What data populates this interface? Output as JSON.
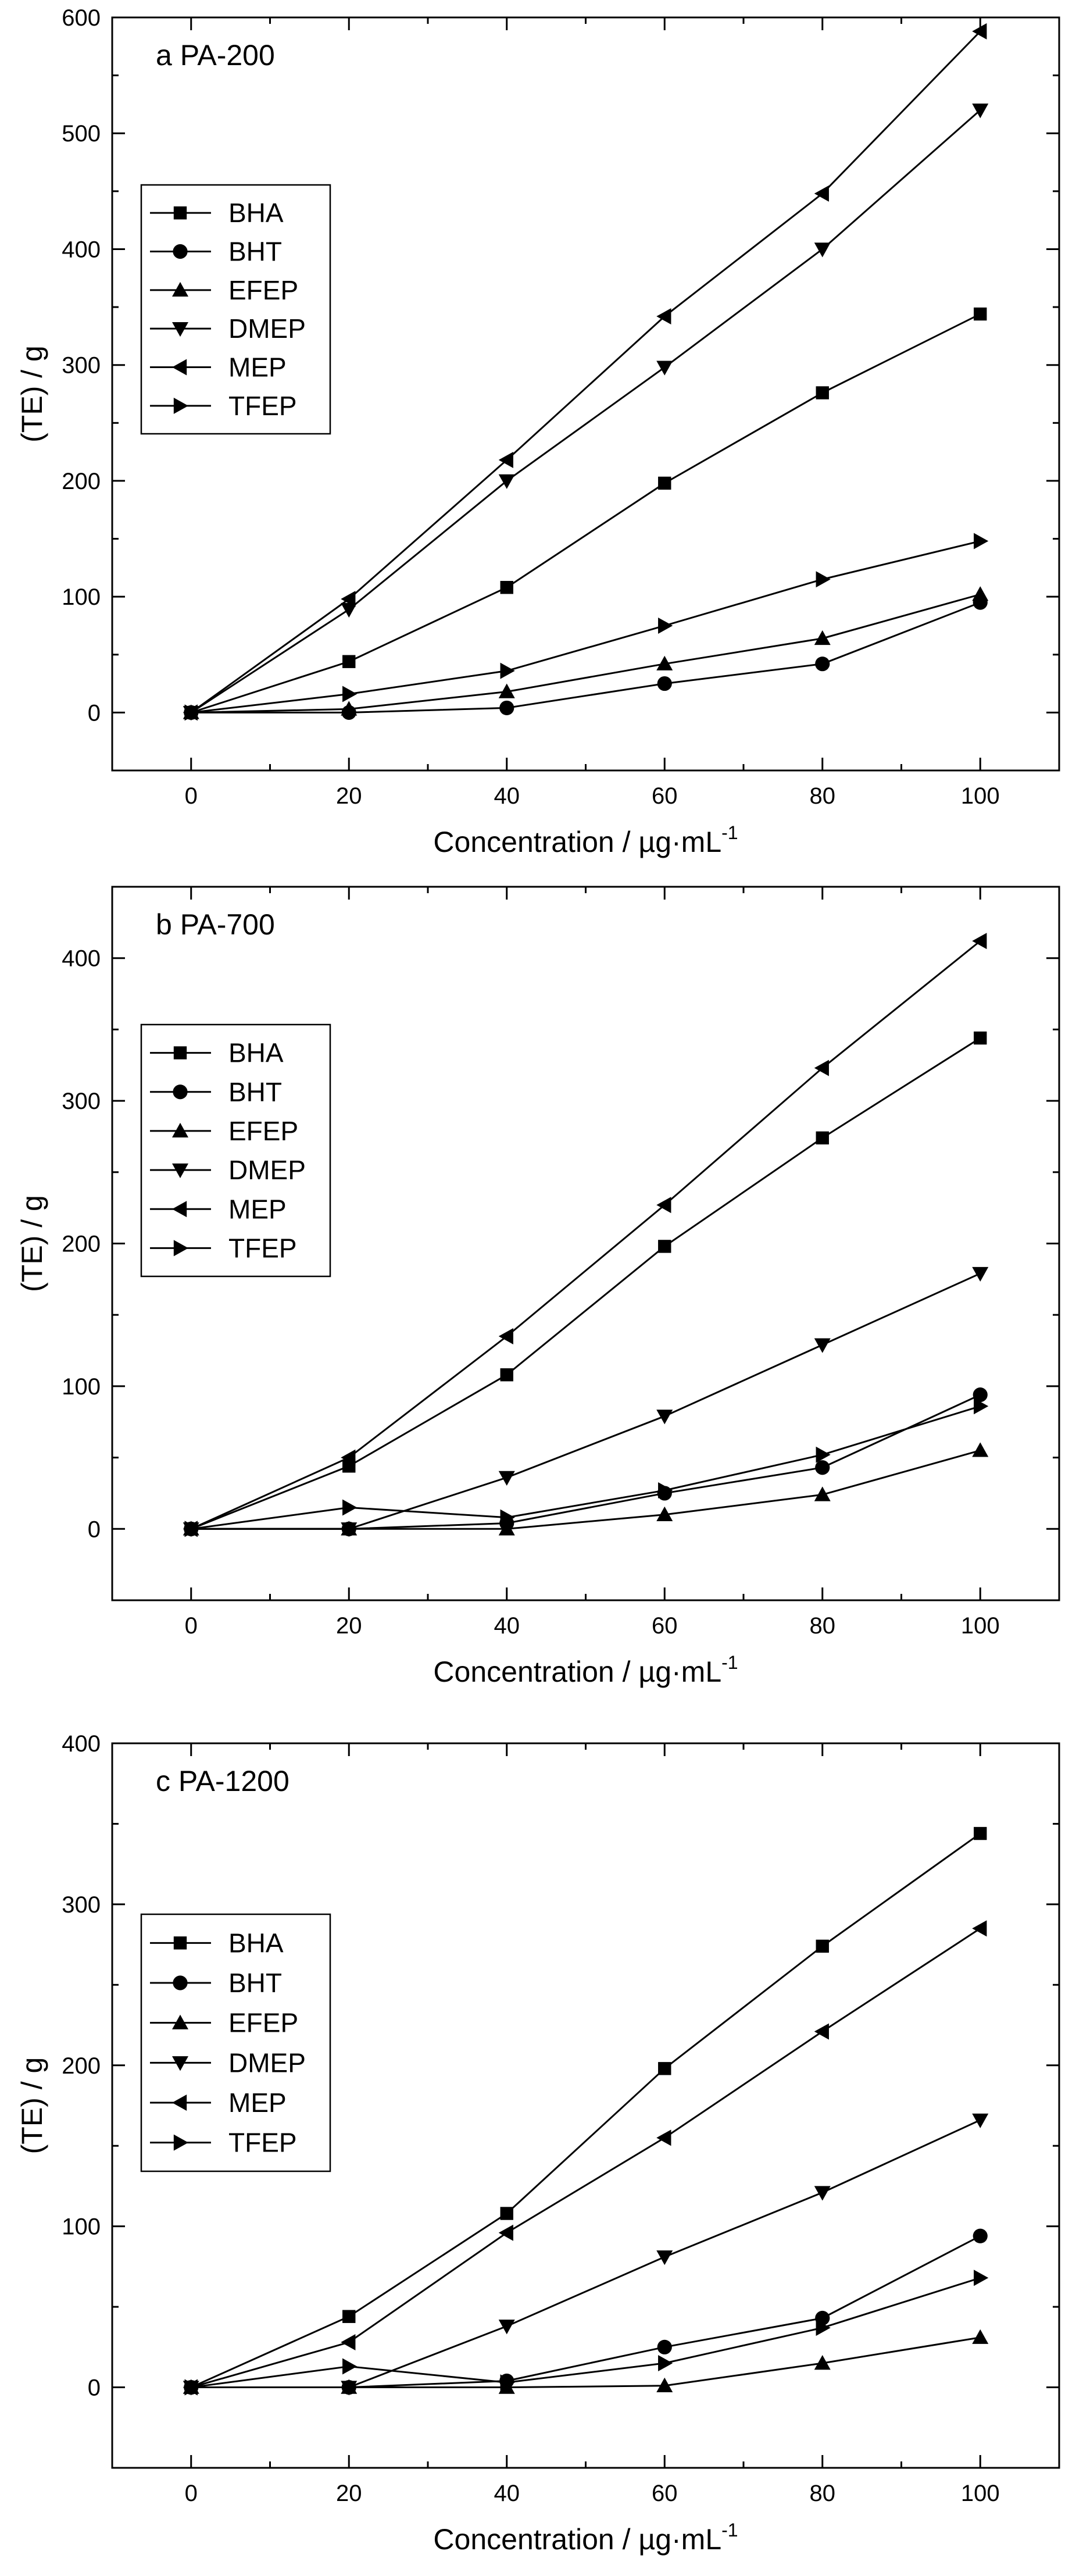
{
  "colors": {
    "line": "#000000",
    "background": "#ffffff"
  },
  "chart_data": [
    {
      "type": "line",
      "title": "a PA-200",
      "xlabel": "Concentration / µg·mL",
      "xlabel_sup": "-1",
      "ylabel": "(TE) / g",
      "xlim": [
        -10,
        110
      ],
      "ylim": [
        -50,
        600
      ],
      "xticks": [
        0,
        20,
        40,
        60,
        80,
        100
      ],
      "yticks": [
        0,
        100,
        200,
        300,
        400,
        500,
        600
      ],
      "x": [
        0,
        20,
        40,
        60,
        80,
        100
      ],
      "series": [
        {
          "name": "BHA",
          "marker": "square",
          "values": [
            0,
            44,
            108,
            198,
            276,
            344
          ]
        },
        {
          "name": "BHT",
          "marker": "circle",
          "values": [
            0,
            0,
            4,
            25,
            42,
            95
          ]
        },
        {
          "name": "EFEP",
          "marker": "triangle-up",
          "values": [
            0,
            3,
            18,
            42,
            64,
            102
          ]
        },
        {
          "name": "DMEP",
          "marker": "triangle-down",
          "values": [
            0,
            89,
            200,
            298,
            400,
            520
          ]
        },
        {
          "name": "MEP",
          "marker": "triangle-left",
          "values": [
            0,
            98,
            218,
            342,
            448,
            588
          ]
        },
        {
          "name": "TFEP",
          "marker": "triangle-right",
          "values": [
            0,
            16,
            36,
            75,
            115,
            148
          ]
        }
      ]
    },
    {
      "type": "line",
      "title": "b PA-700",
      "xlabel": "Concentration / µg·mL",
      "xlabel_sup": "-1",
      "ylabel": "(TE) / g",
      "xlim": [
        -10,
        110
      ],
      "ylim": [
        -50,
        450
      ],
      "xticks": [
        0,
        20,
        40,
        60,
        80,
        100
      ],
      "yticks": [
        0,
        100,
        200,
        300,
        400
      ],
      "x": [
        0,
        20,
        40,
        60,
        80,
        100
      ],
      "series": [
        {
          "name": "BHA",
          "marker": "square",
          "values": [
            0,
            44,
            108,
            198,
            274,
            344
          ]
        },
        {
          "name": "BHT",
          "marker": "circle",
          "values": [
            0,
            0,
            4,
            25,
            43,
            94
          ]
        },
        {
          "name": "EFEP",
          "marker": "triangle-up",
          "values": [
            0,
            0,
            0,
            10,
            24,
            55
          ]
        },
        {
          "name": "DMEP",
          "marker": "triangle-down",
          "values": [
            0,
            0,
            36,
            79,
            129,
            179
          ]
        },
        {
          "name": "MEP",
          "marker": "triangle-left",
          "values": [
            0,
            50,
            135,
            227,
            323,
            412
          ]
        },
        {
          "name": "TFEP",
          "marker": "triangle-right",
          "values": [
            0,
            15,
            8,
            27,
            52,
            86
          ]
        }
      ]
    },
    {
      "type": "line",
      "title": "c PA-1200",
      "xlabel": "Concentration / µg·mL",
      "xlabel_sup": "-1",
      "ylabel": "(TE) / g",
      "xlim": [
        -10,
        110
      ],
      "ylim": [
        -50,
        400
      ],
      "xticks": [
        0,
        20,
        40,
        60,
        80,
        100
      ],
      "yticks": [
        0,
        100,
        200,
        300,
        400
      ],
      "x": [
        0,
        20,
        40,
        60,
        80,
        100
      ],
      "series": [
        {
          "name": "BHA",
          "marker": "square",
          "values": [
            0,
            44,
            108,
            198,
            274,
            344
          ]
        },
        {
          "name": "BHT",
          "marker": "circle",
          "values": [
            0,
            0,
            4,
            25,
            43,
            94
          ]
        },
        {
          "name": "EFEP",
          "marker": "triangle-up",
          "values": [
            0,
            0,
            0,
            1,
            15,
            31
          ]
        },
        {
          "name": "DMEP",
          "marker": "triangle-down",
          "values": [
            0,
            0,
            38,
            81,
            121,
            166
          ]
        },
        {
          "name": "MEP",
          "marker": "triangle-left",
          "values": [
            0,
            28,
            96,
            155,
            221,
            285
          ]
        },
        {
          "name": "TFEP",
          "marker": "triangle-right",
          "values": [
            0,
            13,
            3,
            15,
            37,
            68
          ]
        }
      ]
    }
  ]
}
